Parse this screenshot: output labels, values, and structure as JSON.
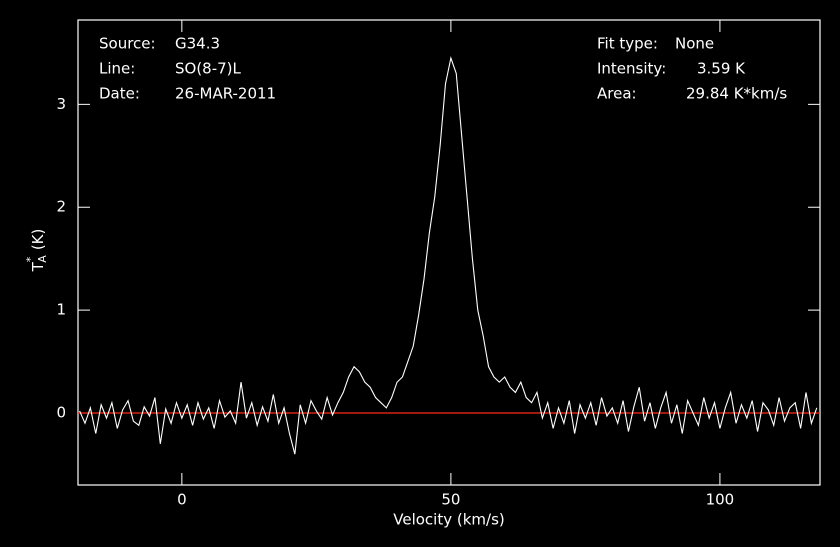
{
  "chart_data": {
    "type": "line",
    "xlabel": "Velocity (km/s)",
    "ylabel": {
      "base": "T",
      "sub": "A",
      "sup": "*",
      "unit": "(K)"
    },
    "info_left": [
      {
        "label": "Source:",
        "value": "G34.3"
      },
      {
        "label": "Line:",
        "value": "SO(8-7)L"
      },
      {
        "label": "Date:",
        "value": "26-MAR-2011"
      }
    ],
    "info_right": [
      {
        "label": "Fit type:",
        "value": "None"
      },
      {
        "label": "Intensity:",
        "value": "3.59 K"
      },
      {
        "label": "Area:",
        "value": "29.84 K*km/s"
      }
    ],
    "xlim": [
      -19.3,
      118.6
    ],
    "ylim": [
      -0.7,
      3.82
    ],
    "xticks": [
      0,
      50,
      100
    ],
    "yticks": [
      0,
      1,
      2,
      3
    ],
    "baseline": 0,
    "baseline_color": "#ff2a1a",
    "series": [
      {
        "color": "#ffffff",
        "x": [
          -19,
          -18,
          -17,
          -16,
          -15,
          -14,
          -13,
          -12,
          -11,
          -10,
          -9,
          -8,
          -7,
          -6,
          -5,
          -4,
          -3,
          -2,
          -1,
          0,
          1,
          2,
          3,
          4,
          5,
          6,
          7,
          8,
          9,
          10,
          11,
          12,
          13,
          14,
          15,
          16,
          17,
          18,
          19,
          20,
          21,
          22,
          23,
          24,
          25,
          26,
          27,
          28,
          29,
          30,
          31,
          32,
          33,
          34,
          35,
          36,
          37,
          38,
          39,
          40,
          41,
          42,
          43,
          44,
          45,
          46,
          47,
          48,
          49,
          50,
          51,
          52,
          53,
          54,
          55,
          56,
          57,
          58,
          59,
          60,
          61,
          62,
          63,
          64,
          65,
          66,
          67,
          68,
          69,
          70,
          71,
          72,
          73,
          74,
          75,
          76,
          77,
          78,
          79,
          80,
          81,
          82,
          83,
          84,
          85,
          86,
          87,
          88,
          89,
          90,
          91,
          92,
          93,
          94,
          95,
          96,
          97,
          98,
          99,
          100,
          101,
          102,
          103,
          104,
          105,
          106,
          107,
          108,
          109,
          110,
          111,
          112,
          113,
          114,
          115,
          116,
          117,
          118
        ],
        "values": [
          0.02,
          -0.1,
          0.05,
          -0.2,
          0.08,
          -0.05,
          0.1,
          -0.15,
          0.03,
          0.12,
          -0.08,
          -0.12,
          0.06,
          -0.03,
          0.15,
          -0.3,
          0.04,
          -0.1,
          0.1,
          -0.05,
          0.08,
          -0.12,
          0.1,
          -0.06,
          0.05,
          -0.15,
          0.12,
          -0.04,
          0.02,
          -0.1,
          0.3,
          -0.05,
          0.1,
          -0.12,
          0.06,
          -0.08,
          0.18,
          -0.1,
          0.05,
          -0.2,
          -0.4,
          0.08,
          -0.1,
          0.12,
          0.02,
          -0.06,
          0.15,
          -0.02,
          0.1,
          0.2,
          0.35,
          0.45,
          0.4,
          0.3,
          0.25,
          0.15,
          0.1,
          0.05,
          0.15,
          0.3,
          0.35,
          0.5,
          0.65,
          0.95,
          1.3,
          1.75,
          2.1,
          2.6,
          3.2,
          3.45,
          3.3,
          2.7,
          2.1,
          1.5,
          1.0,
          0.75,
          0.45,
          0.35,
          0.3,
          0.35,
          0.25,
          0.2,
          0.3,
          0.15,
          0.1,
          0.2,
          -0.05,
          0.1,
          -0.15,
          0.05,
          -0.1,
          0.12,
          -0.2,
          0.08,
          -0.05,
          0.1,
          -0.12,
          0.15,
          -0.03,
          0.05,
          -0.1,
          0.12,
          -0.18,
          0.06,
          0.25,
          -0.08,
          0.1,
          -0.15,
          0.05,
          0.2,
          -0.1,
          0.08,
          -0.2,
          0.12,
          0.0,
          -0.12,
          0.15,
          -0.05,
          0.1,
          -0.15,
          0.05,
          0.2,
          -0.1,
          0.08,
          -0.05,
          0.12,
          -0.18,
          0.1,
          0.03,
          -0.12,
          0.15,
          -0.08,
          0.05,
          0.1,
          -0.15,
          0.2,
          -0.1,
          0.05
        ]
      }
    ]
  }
}
